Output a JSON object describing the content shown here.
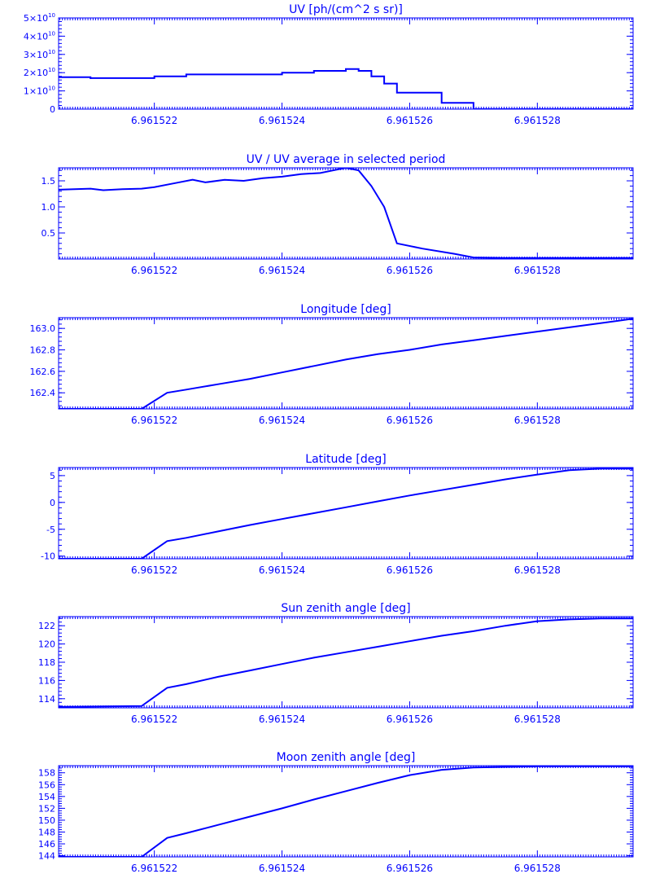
{
  "page": {
    "color": "#0000ff",
    "background": "#ffffff"
  },
  "chart_data": [
    {
      "type": "line",
      "title": "UV [ph/(cm^2 s sr)]",
      "xlabel": "",
      "ylabel": "",
      "xlim": [
        6.9615205,
        6.9615295
      ],
      "ylim": [
        0,
        50000000000.0
      ],
      "x_ticks": [
        "6.961522",
        "6.961524",
        "6.961526",
        "6.961528"
      ],
      "y_ticks": [
        {
          "value": 50000000000.0,
          "label": "5×10",
          "exp": "10"
        },
        {
          "value": 40000000000.0,
          "label": "4×10",
          "exp": "10"
        },
        {
          "value": 30000000000.0,
          "label": "3×10",
          "exp": "10"
        },
        {
          "value": 20000000000.0,
          "label": "2×10",
          "exp": "10"
        },
        {
          "value": 10000000000.0,
          "label": "1×10",
          "exp": "10"
        },
        {
          "value": 0,
          "label": "0",
          "exp": ""
        }
      ],
      "step": true,
      "series": [
        {
          "x": [
            6.9615205,
            6.961521,
            6.961521,
            6.961521,
            6.9615215,
            6.961522,
            6.9615225,
            6.961523,
            6.9615235,
            6.961524,
            6.9615245,
            6.961525,
            6.961525,
            6.9615252,
            6.9615254,
            6.9615256,
            6.9615258,
            6.9615265,
            6.961527,
            6.9615295
          ],
          "y": [
            17500000000.0,
            17000000000.0,
            16500000000.0,
            17000000000.0,
            17000000000.0,
            18000000000.0,
            19000000000.0,
            19000000000.0,
            19000000000.0,
            20000000000.0,
            21000000000.0,
            22000000000.0,
            22000000000.0,
            21000000000.0,
            18000000000.0,
            14000000000.0,
            9000000000.0,
            3500000000.0,
            0,
            0
          ]
        }
      ]
    },
    {
      "type": "line",
      "title": "UV / UV average in selected period",
      "xlabel": "",
      "ylabel": "",
      "xlim": [
        6.9615205,
        6.9615295
      ],
      "ylim": [
        0,
        1.75
      ],
      "x_ticks": [
        "6.961522",
        "6.961524",
        "6.961526",
        "6.961528"
      ],
      "y_ticks": [
        {
          "value": 1.5,
          "label": "1.5"
        },
        {
          "value": 1.0,
          "label": "1.0"
        },
        {
          "value": 0.5,
          "label": "0.5"
        }
      ],
      "series": [
        {
          "x": [
            6.9615205,
            6.961521,
            6.9615212,
            6.9615215,
            6.9615218,
            6.961522,
            6.9615223,
            6.9615226,
            6.9615228,
            6.9615231,
            6.9615234,
            6.9615237,
            6.961524,
            6.9615243,
            6.9615246,
            6.9615248,
            6.961525,
            6.9615252,
            6.9615254,
            6.9615256,
            6.9615258,
            6.9615262,
            6.9615267,
            6.961527,
            6.9615275,
            6.961528,
            6.9615295
          ],
          "y": [
            1.33,
            1.35,
            1.32,
            1.34,
            1.35,
            1.38,
            1.45,
            1.52,
            1.47,
            1.52,
            1.5,
            1.55,
            1.58,
            1.63,
            1.65,
            1.7,
            1.75,
            1.7,
            1.4,
            1.0,
            0.3,
            0.2,
            0.1,
            0.03,
            0.02,
            0.02,
            0.02
          ]
        }
      ]
    },
    {
      "type": "line",
      "title": "Longitude [deg]",
      "xlabel": "",
      "ylabel": "",
      "xlim": [
        6.9615205,
        6.9615295
      ],
      "ylim": [
        162.25,
        163.1
      ],
      "x_ticks": [
        "6.961522",
        "6.961524",
        "6.961526",
        "6.961528"
      ],
      "y_ticks": [
        {
          "value": 163.0,
          "label": "163.0"
        },
        {
          "value": 162.8,
          "label": "162.8"
        },
        {
          "value": 162.6,
          "label": "162.6"
        },
        {
          "value": 162.4,
          "label": "162.4"
        }
      ],
      "series": [
        {
          "x": [
            6.9615205,
            6.9615218,
            6.9615222,
            6.9615225,
            6.961523,
            6.9615235,
            6.961524,
            6.9615245,
            6.961525,
            6.9615255,
            6.961526,
            6.9615265,
            6.961527,
            6.9615275,
            6.961528,
            6.9615285,
            6.961529,
            6.9615295
          ],
          "y": [
            162.25,
            162.25,
            162.4,
            162.43,
            162.48,
            162.53,
            162.59,
            162.65,
            162.71,
            162.76,
            162.8,
            162.85,
            162.89,
            162.93,
            162.97,
            163.01,
            163.05,
            163.09
          ]
        }
      ]
    },
    {
      "type": "line",
      "title": "Latitude [deg]",
      "xlabel": "",
      "ylabel": "",
      "xlim": [
        6.9615205,
        6.9615295
      ],
      "ylim": [
        -10.5,
        6.5
      ],
      "x_ticks": [
        "6.961522",
        "6.961524",
        "6.961526",
        "6.961528"
      ],
      "y_ticks": [
        {
          "value": 5,
          "label": "5"
        },
        {
          "value": 0,
          "label": "0"
        },
        {
          "value": -5,
          "label": "-5"
        },
        {
          "value": -10,
          "label": "-10"
        }
      ],
      "series": [
        {
          "x": [
            6.9615205,
            6.9615218,
            6.9615222,
            6.9615225,
            6.961523,
            6.9615235,
            6.961524,
            6.9615245,
            6.961525,
            6.9615255,
            6.961526,
            6.9615265,
            6.961527,
            6.9615275,
            6.961528,
            6.9615285,
            6.961529,
            6.9615295
          ],
          "y": [
            -10.5,
            -10.5,
            -7.2,
            -6.6,
            -5.4,
            -4.2,
            -3.1,
            -2.0,
            -0.9,
            0.2,
            1.3,
            2.3,
            3.3,
            4.3,
            5.2,
            6.0,
            6.3,
            6.3
          ]
        }
      ]
    },
    {
      "type": "line",
      "title": "Sun zenith angle [deg]",
      "xlabel": "",
      "ylabel": "",
      "xlim": [
        6.9615205,
        6.9615295
      ],
      "ylim": [
        113,
        123
      ],
      "x_ticks": [
        "6.961522",
        "6.961524",
        "6.961526",
        "6.961528"
      ],
      "y_ticks": [
        {
          "value": 122,
          "label": "122"
        },
        {
          "value": 120,
          "label": "120"
        },
        {
          "value": 118,
          "label": "118"
        },
        {
          "value": 116,
          "label": "116"
        },
        {
          "value": 114,
          "label": "114"
        }
      ],
      "series": [
        {
          "x": [
            6.9615205,
            6.9615218,
            6.9615222,
            6.9615225,
            6.961523,
            6.9615235,
            6.961524,
            6.9615245,
            6.961525,
            6.9615255,
            6.961526,
            6.9615265,
            6.961527,
            6.9615275,
            6.961528,
            6.9615285,
            6.961529,
            6.9615295
          ],
          "y": [
            113.1,
            113.2,
            115.2,
            115.6,
            116.4,
            117.1,
            117.8,
            118.5,
            119.1,
            119.7,
            120.3,
            120.9,
            121.4,
            122.0,
            122.5,
            122.7,
            122.8,
            122.8
          ]
        }
      ]
    },
    {
      "type": "line",
      "title": "Moon zenith angle [deg]",
      "xlabel": "",
      "ylabel": "",
      "xlim": [
        6.9615205,
        6.9615295
      ],
      "ylim": [
        143.8,
        159.2
      ],
      "x_ticks": [
        "6.961522",
        "6.961524",
        "6.961526",
        "6.961528"
      ],
      "y_ticks": [
        {
          "value": 158,
          "label": "158"
        },
        {
          "value": 156,
          "label": "156"
        },
        {
          "value": 154,
          "label": "154"
        },
        {
          "value": 152,
          "label": "152"
        },
        {
          "value": 150,
          "label": "150"
        },
        {
          "value": 148,
          "label": "148"
        },
        {
          "value": 146,
          "label": "146"
        },
        {
          "value": 144,
          "label": "144"
        }
      ],
      "series": [
        {
          "x": [
            6.9615205,
            6.9615218,
            6.9615222,
            6.9615225,
            6.961523,
            6.9615235,
            6.961524,
            6.9615245,
            6.961525,
            6.9615255,
            6.961526,
            6.9615265,
            6.961527,
            6.9615275,
            6.961528,
            6.9615285,
            6.961529,
            6.9615295
          ],
          "y": [
            143.8,
            143.8,
            147.0,
            147.8,
            149.2,
            150.6,
            152.0,
            153.5,
            154.9,
            156.3,
            157.6,
            158.5,
            158.9,
            159.0,
            159.1,
            159.1,
            159.1,
            159.1
          ]
        }
      ]
    }
  ]
}
